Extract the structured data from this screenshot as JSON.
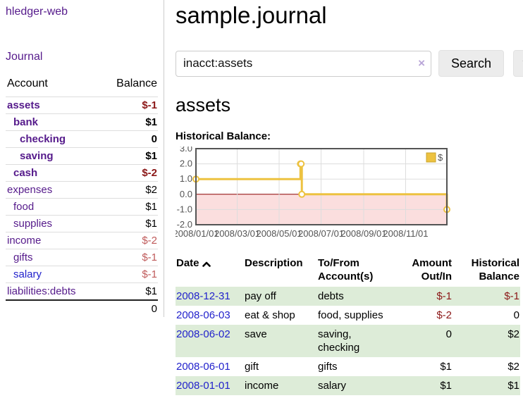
{
  "app": {
    "brand": "hledger-web",
    "nav_journal": "Journal"
  },
  "sidebar": {
    "header": {
      "account": "Account",
      "balance": "Balance"
    },
    "accounts": [
      {
        "name": "assets",
        "balance": "$-1",
        "indent": 0,
        "bold": true,
        "link_color": "purple",
        "balance_tone": "neg-strong"
      },
      {
        "name": "bank",
        "balance": "$1",
        "indent": 1,
        "bold": true,
        "link_color": "purple",
        "balance_tone": "normal"
      },
      {
        "name": "checking",
        "balance": "0",
        "indent": 2,
        "bold": true,
        "link_color": "purple",
        "balance_tone": "normal"
      },
      {
        "name": "saving",
        "balance": "$1",
        "indent": 2,
        "bold": true,
        "link_color": "purple",
        "balance_tone": "normal"
      },
      {
        "name": "cash",
        "balance": "$-2",
        "indent": 1,
        "bold": true,
        "link_color": "purple",
        "balance_tone": "neg-strong"
      },
      {
        "name": "expenses",
        "balance": "$2",
        "indent": 0,
        "bold": false,
        "link_color": "purple",
        "balance_tone": "normal"
      },
      {
        "name": "food",
        "balance": "$1",
        "indent": 1,
        "bold": false,
        "link_color": "purple",
        "balance_tone": "normal"
      },
      {
        "name": "supplies",
        "balance": "$1",
        "indent": 1,
        "bold": false,
        "link_color": "purple",
        "balance_tone": "normal"
      },
      {
        "name": "income",
        "balance": "$-2",
        "indent": 0,
        "bold": false,
        "link_color": "purple",
        "balance_tone": "neg-soft"
      },
      {
        "name": "gifts",
        "balance": "$-1",
        "indent": 1,
        "bold": false,
        "link_color": "purple",
        "balance_tone": "neg-soft"
      },
      {
        "name": "salary",
        "balance": "$-1",
        "indent": 1,
        "bold": false,
        "link_color": "blue",
        "balance_tone": "neg-soft"
      },
      {
        "name": "liabilities:debts",
        "balance": "$1",
        "indent": 0,
        "bold": false,
        "link_color": "purple",
        "balance_tone": "normal"
      }
    ],
    "total": "0"
  },
  "main": {
    "title": "sample.journal",
    "search": {
      "value": "inacct:assets",
      "clear_icon": "×",
      "search_label": "Search",
      "help_label": "?"
    },
    "account_heading": "assets",
    "chart_label": "Historical Balance:",
    "register": {
      "columns": [
        "Date",
        "Description",
        "To/From Account(s)",
        "Amount Out/In",
        "Historical Balance"
      ],
      "sort": {
        "column": "Date",
        "direction": "ascending"
      },
      "rows": [
        {
          "date": "2008-12-31",
          "description": "pay off",
          "accounts": "debts",
          "amount": "$-1",
          "balance": "$-1",
          "amount_negative": true,
          "balance_negative": true,
          "highlight": true
        },
        {
          "date": "2008-06-03",
          "description": "eat & shop",
          "accounts": "food, supplies",
          "amount": "$-2",
          "balance": "0",
          "amount_negative": true,
          "balance_negative": false,
          "highlight": false
        },
        {
          "date": "2008-06-02",
          "description": "save",
          "accounts": "saving, checking",
          "amount": "0",
          "balance": "$2",
          "amount_negative": false,
          "balance_negative": false,
          "highlight": true
        },
        {
          "date": "2008-06-01",
          "description": "gift",
          "accounts": "gifts",
          "amount": "$1",
          "balance": "$2",
          "amount_negative": false,
          "balance_negative": false,
          "highlight": false
        },
        {
          "date": "2008-01-01",
          "description": "income",
          "accounts": "salary",
          "amount": "$1",
          "balance": "$1",
          "amount_negative": false,
          "balance_negative": false,
          "highlight": true
        }
      ]
    }
  },
  "chart_data": {
    "type": "line",
    "step": true,
    "title": "Historical Balance:",
    "series": [
      {
        "name": "$",
        "color": "#edc240",
        "points": [
          {
            "date": "2008-01-01",
            "value": 1
          },
          {
            "date": "2008-06-01",
            "value": 2
          },
          {
            "date": "2008-06-02",
            "value": 2
          },
          {
            "date": "2008-06-03",
            "value": 0
          },
          {
            "date": "2008-12-31",
            "value": -1
          }
        ]
      }
    ],
    "xlim_dates": [
      "2008-01-01",
      "2008-12-31"
    ],
    "ylim": [
      -2,
      3
    ],
    "y_ticks": [
      {
        "value": 3,
        "label": "3.0"
      },
      {
        "value": 2,
        "label": "2.0"
      },
      {
        "value": 1,
        "label": "1.0"
      },
      {
        "value": 0,
        "label": "0.0"
      },
      {
        "value": -1,
        "label": "-1.0"
      },
      {
        "value": -2,
        "label": "-2.0"
      }
    ],
    "x_ticks": [
      {
        "date": "2008-01-01",
        "label": "2008/01/01"
      },
      {
        "date": "2008-03-01",
        "label": "2008/03/01"
      },
      {
        "date": "2008-05-01",
        "label": "2008/05/01"
      },
      {
        "date": "2008-07-01",
        "label": "2008/07/01"
      },
      {
        "date": "2008-09-01",
        "label": "2008/09/01"
      },
      {
        "date": "2008-11-01",
        "label": "2008/11/01"
      }
    ],
    "legend": {
      "label": "$",
      "position": "top-right"
    },
    "colors": {
      "negative_region": "#fbdede",
      "zero_line": "#8b0000",
      "grid": "#dddddd",
      "border": "#545454",
      "tick_text": "#545454",
      "marker_fill": "#ffffff",
      "legend_square_border": "#c9a42f"
    },
    "grid": true
  }
}
